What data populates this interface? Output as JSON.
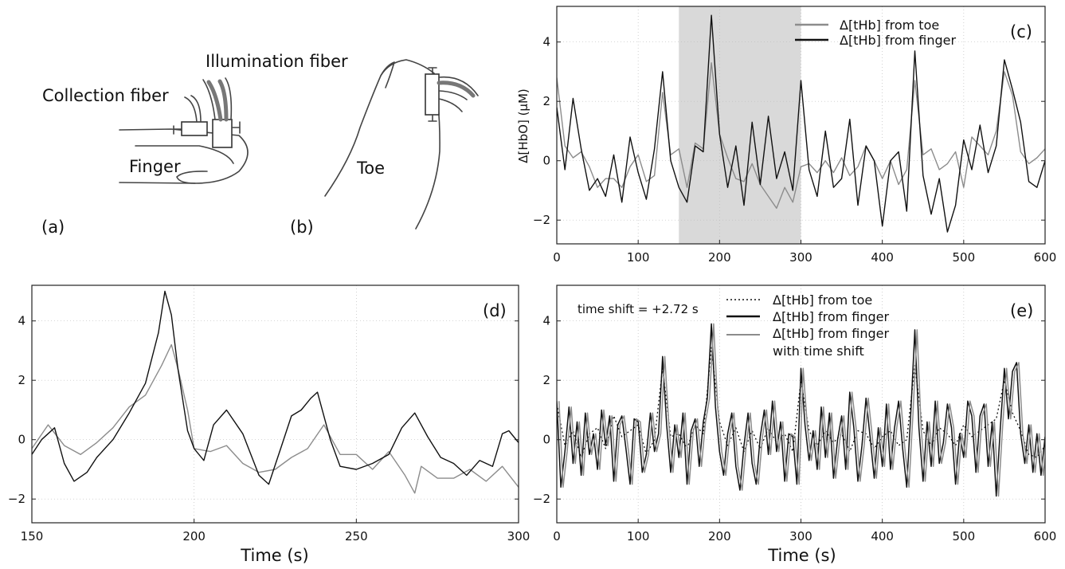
{
  "figure": {
    "panel_a": {
      "tag": "(a)",
      "collection_label": "Collection fiber",
      "illumination_label": "Illumination fiber",
      "finger_label": "Finger"
    },
    "panel_b": {
      "tag": "(b)",
      "toe_label": "Toe"
    }
  },
  "chart_data": [
    {
      "id": "c",
      "type": "line",
      "panel_tag": "(c)",
      "ylabel": "Δ[HbO] (μM)",
      "xlabel": "",
      "xlim": [
        0,
        600
      ],
      "ylim": [
        -2.8,
        5.2
      ],
      "xticks": [
        0,
        100,
        200,
        300,
        400,
        500,
        600
      ],
      "yticks": [
        -2,
        0,
        2,
        4
      ],
      "grid": true,
      "legend": "top-right",
      "highlight_region": [
        150,
        300
      ],
      "series": [
        {
          "name": "Δ[tHb] from toe",
          "color": "#8c8c8c",
          "x": [
            0,
            10,
            20,
            30,
            40,
            50,
            60,
            70,
            80,
            90,
            100,
            110,
            120,
            130,
            140,
            150,
            160,
            170,
            180,
            190,
            200,
            210,
            220,
            230,
            240,
            250,
            260,
            270,
            280,
            290,
            300,
            310,
            320,
            330,
            340,
            350,
            360,
            370,
            380,
            390,
            400,
            410,
            420,
            430,
            440,
            450,
            460,
            470,
            480,
            490,
            500,
            510,
            520,
            530,
            540,
            550,
            560,
            570,
            580,
            590,
            600
          ],
          "y": [
            2.8,
            0.5,
            0.1,
            0.3,
            -0.2,
            -0.9,
            -0.6,
            -0.6,
            -0.9,
            -0.2,
            0.2,
            -0.7,
            -0.5,
            2.3,
            0.2,
            0.4,
            -0.9,
            0.6,
            0.4,
            3.3,
            0.9,
            0.1,
            -0.6,
            -0.7,
            -0.1,
            -0.8,
            -1.2,
            -1.6,
            -0.9,
            -1.4,
            -0.2,
            -0.1,
            -0.4,
            0.0,
            -0.4,
            0.1,
            -0.5,
            -0.2,
            0.5,
            0.0,
            -0.6,
            0.0,
            -0.8,
            -0.3,
            2.7,
            0.2,
            0.4,
            -0.3,
            -0.1,
            0.3,
            -0.9,
            0.8,
            0.5,
            0.2,
            1.0,
            3.0,
            2.2,
            0.3,
            -0.1,
            0.1,
            0.4
          ]
        },
        {
          "name": "Δ[tHb] from finger",
          "color": "#111111",
          "x": [
            0,
            10,
            20,
            30,
            40,
            50,
            60,
            70,
            80,
            90,
            100,
            110,
            120,
            130,
            140,
            150,
            160,
            170,
            180,
            190,
            200,
            210,
            220,
            230,
            240,
            250,
            260,
            270,
            280,
            290,
            300,
            310,
            320,
            330,
            340,
            350,
            360,
            370,
            380,
            390,
            400,
            410,
            420,
            430,
            440,
            450,
            460,
            470,
            480,
            490,
            500,
            510,
            520,
            530,
            540,
            550,
            560,
            570,
            580,
            590,
            600
          ],
          "y": [
            1.8,
            -0.3,
            2.1,
            0.4,
            -1.0,
            -0.6,
            -1.2,
            0.2,
            -1.4,
            0.8,
            -0.4,
            -1.3,
            0.4,
            3.0,
            0.0,
            -0.9,
            -1.4,
            0.5,
            0.3,
            4.9,
            0.9,
            -0.9,
            0.5,
            -1.5,
            1.3,
            -0.8,
            1.5,
            -0.6,
            0.3,
            -1.0,
            2.7,
            -0.3,
            -1.2,
            1.0,
            -0.9,
            -0.6,
            1.4,
            -1.5,
            0.5,
            0.0,
            -2.2,
            0.0,
            0.3,
            -1.7,
            3.7,
            -0.5,
            -1.8,
            -0.6,
            -2.4,
            -1.5,
            0.7,
            -0.3,
            1.2,
            -0.4,
            0.5,
            3.4,
            2.4,
            1.3,
            -0.7,
            -0.9,
            0.0
          ]
        }
      ]
    },
    {
      "id": "d",
      "type": "line",
      "panel_tag": "(d)",
      "xlabel": "Time (s)",
      "ylabel": "",
      "xlim": [
        150,
        300
      ],
      "ylim": [
        -2.8,
        5.2
      ],
      "xticks": [
        150,
        200,
        250,
        300
      ],
      "yticks": [
        -2,
        0,
        2,
        4
      ],
      "grid": true,
      "series": [
        {
          "name": "",
          "color": "#8c8c8c",
          "x": [
            150,
            155,
            160,
            165,
            170,
            175,
            180,
            185,
            190,
            193,
            195,
            198,
            200,
            205,
            210,
            215,
            220,
            225,
            230,
            235,
            240,
            245,
            250,
            255,
            260,
            265,
            268,
            270,
            275,
            280,
            285,
            290,
            295,
            300
          ],
          "y": [
            -0.3,
            0.5,
            -0.2,
            -0.5,
            -0.1,
            0.4,
            1.1,
            1.5,
            2.5,
            3.2,
            2.4,
            1.0,
            -0.3,
            -0.4,
            -0.2,
            -0.8,
            -1.1,
            -1.0,
            -0.6,
            -0.3,
            0.5,
            -0.5,
            -0.5,
            -1.0,
            -0.4,
            -1.2,
            -1.8,
            -0.9,
            -1.3,
            -1.3,
            -1.0,
            -1.4,
            -0.9,
            -1.6
          ]
        },
        {
          "name": "",
          "color": "#111111",
          "x": [
            150,
            153,
            157,
            160,
            163,
            167,
            170,
            175,
            180,
            185,
            189,
            191,
            193,
            195,
            198,
            200,
            203,
            206,
            210,
            215,
            220,
            223,
            227,
            230,
            233,
            236,
            238,
            242,
            245,
            250,
            255,
            260,
            264,
            268,
            272,
            276,
            280,
            284,
            288,
            292,
            295,
            297,
            300
          ],
          "y": [
            -0.5,
            0.0,
            0.4,
            -0.8,
            -1.4,
            -1.1,
            -0.6,
            0.0,
            0.9,
            1.9,
            3.6,
            5.0,
            4.2,
            2.4,
            0.3,
            -0.3,
            -0.7,
            0.5,
            1.0,
            0.2,
            -1.2,
            -1.5,
            -0.2,
            0.8,
            1.0,
            1.4,
            1.6,
            0.0,
            -0.9,
            -1.0,
            -0.8,
            -0.5,
            0.4,
            0.9,
            0.1,
            -0.6,
            -0.8,
            -1.2,
            -0.7,
            -0.9,
            0.2,
            0.3,
            -0.1
          ]
        }
      ]
    },
    {
      "id": "e",
      "type": "line",
      "panel_tag": "(e)",
      "annotation": "time shift = +2.72 s",
      "xlabel": "Time (s)",
      "ylabel": "",
      "xlim": [
        0,
        600
      ],
      "ylim": [
        -2.8,
        5.2
      ],
      "xticks": [
        0,
        100,
        200,
        300,
        400,
        500,
        600
      ],
      "yticks": [
        -2,
        0,
        2,
        4
      ],
      "grid": true,
      "legend": "top-center",
      "series": [
        {
          "name": "Δ[tHb] from toe",
          "color": "#111111",
          "style": "dotted",
          "x": [
            0,
            10,
            20,
            30,
            40,
            50,
            60,
            70,
            80,
            90,
            100,
            110,
            120,
            130,
            140,
            150,
            160,
            170,
            180,
            190,
            200,
            210,
            220,
            230,
            240,
            250,
            260,
            270,
            280,
            290,
            300,
            310,
            320,
            330,
            340,
            350,
            360,
            370,
            380,
            390,
            400,
            410,
            420,
            430,
            440,
            450,
            460,
            470,
            480,
            490,
            500,
            510,
            520,
            530,
            540,
            550,
            560,
            570,
            580,
            590,
            600
          ],
          "y": [
            1.2,
            -0.2,
            0.3,
            -0.6,
            0.2,
            0.4,
            -0.3,
            0.8,
            0.1,
            0.3,
            0.5,
            -0.5,
            0.0,
            2.4,
            0.1,
            0.2,
            -0.3,
            0.5,
            0.2,
            3.1,
            0.6,
            -0.2,
            0.4,
            -0.4,
            0.3,
            -0.3,
            0.4,
            -0.1,
            0.2,
            -0.4,
            2.0,
            0.3,
            -0.2,
            0.3,
            -0.1,
            0.2,
            -0.4,
            0.3,
            0.2,
            -0.3,
            0.1,
            0.3,
            -0.2,
            0.0,
            2.5,
            0.3,
            -0.2,
            0.4,
            0.2,
            -0.2,
            0.5,
            0.1,
            0.3,
            0.5,
            0.7,
            2.0,
            0.9,
            0.3,
            -0.5,
            -0.6,
            -0.2
          ]
        },
        {
          "name": "Δ[tHb] from finger",
          "color": "#111111",
          "style": "solid",
          "x": [
            0,
            5,
            10,
            15,
            20,
            25,
            30,
            35,
            40,
            45,
            50,
            55,
            60,
            65,
            70,
            75,
            80,
            85,
            90,
            95,
            100,
            105,
            110,
            115,
            120,
            125,
            130,
            135,
            140,
            145,
            150,
            155,
            160,
            165,
            170,
            175,
            180,
            185,
            190,
            195,
            200,
            205,
            210,
            215,
            220,
            225,
            230,
            235,
            240,
            245,
            250,
            255,
            260,
            265,
            270,
            275,
            280,
            285,
            290,
            295,
            300,
            305,
            310,
            315,
            320,
            325,
            330,
            335,
            340,
            345,
            350,
            355,
            360,
            365,
            370,
            375,
            380,
            385,
            390,
            395,
            400,
            405,
            410,
            415,
            420,
            425,
            430,
            435,
            440,
            445,
            450,
            455,
            460,
            465,
            470,
            475,
            480,
            485,
            490,
            495,
            500,
            505,
            510,
            515,
            520,
            525,
            530,
            535,
            540,
            545,
            550,
            555,
            560,
            565,
            570,
            575,
            580,
            585,
            590,
            595,
            600
          ],
          "y": [
            1.3,
            -1.6,
            -0.4,
            1.1,
            -0.8,
            0.6,
            -1.2,
            0.9,
            -0.5,
            0.2,
            -1.0,
            1.0,
            -0.2,
            0.8,
            -1.4,
            0.5,
            0.8,
            -0.3,
            -1.5,
            0.7,
            0.6,
            -1.1,
            -0.5,
            0.9,
            -0.4,
            0.2,
            2.8,
            0.5,
            -1.1,
            0.5,
            -0.6,
            0.9,
            -1.5,
            0.3,
            0.7,
            -0.9,
            0.6,
            1.4,
            3.9,
            1.1,
            -0.4,
            -1.2,
            0.2,
            0.9,
            -0.9,
            -1.7,
            -0.2,
            0.9,
            -0.8,
            -1.5,
            0.1,
            1.0,
            -0.5,
            1.3,
            -0.4,
            0.6,
            -1.4,
            0.2,
            0.1,
            -1.5,
            2.4,
            0.5,
            -0.7,
            0.3,
            -1.0,
            1.1,
            -0.6,
            0.9,
            -1.3,
            0.0,
            0.8,
            -1.0,
            1.6,
            0.4,
            -1.4,
            -0.2,
            1.4,
            0.1,
            -1.3,
            0.4,
            -0.9,
            1.2,
            -1.0,
            0.4,
            1.3,
            -0.3,
            -1.6,
            0.9,
            3.7,
            0.4,
            -1.4,
            0.6,
            -0.9,
            1.3,
            -0.8,
            -0.1,
            1.2,
            0.4,
            -1.5,
            0.2,
            -0.6,
            1.3,
            0.8,
            -1.1,
            0.8,
            1.2,
            -0.9,
            0.6,
            -1.9,
            0.4,
            2.4,
            0.7,
            2.3,
            2.6,
            0.2,
            -0.8,
            0.5,
            -1.1,
            0.2,
            -1.2,
            0.1
          ]
        },
        {
          "name": "Δ[tHb] from finger with time shift",
          "color": "#8c8c8c",
          "style": "solid",
          "shift": 2.72
        }
      ]
    }
  ]
}
